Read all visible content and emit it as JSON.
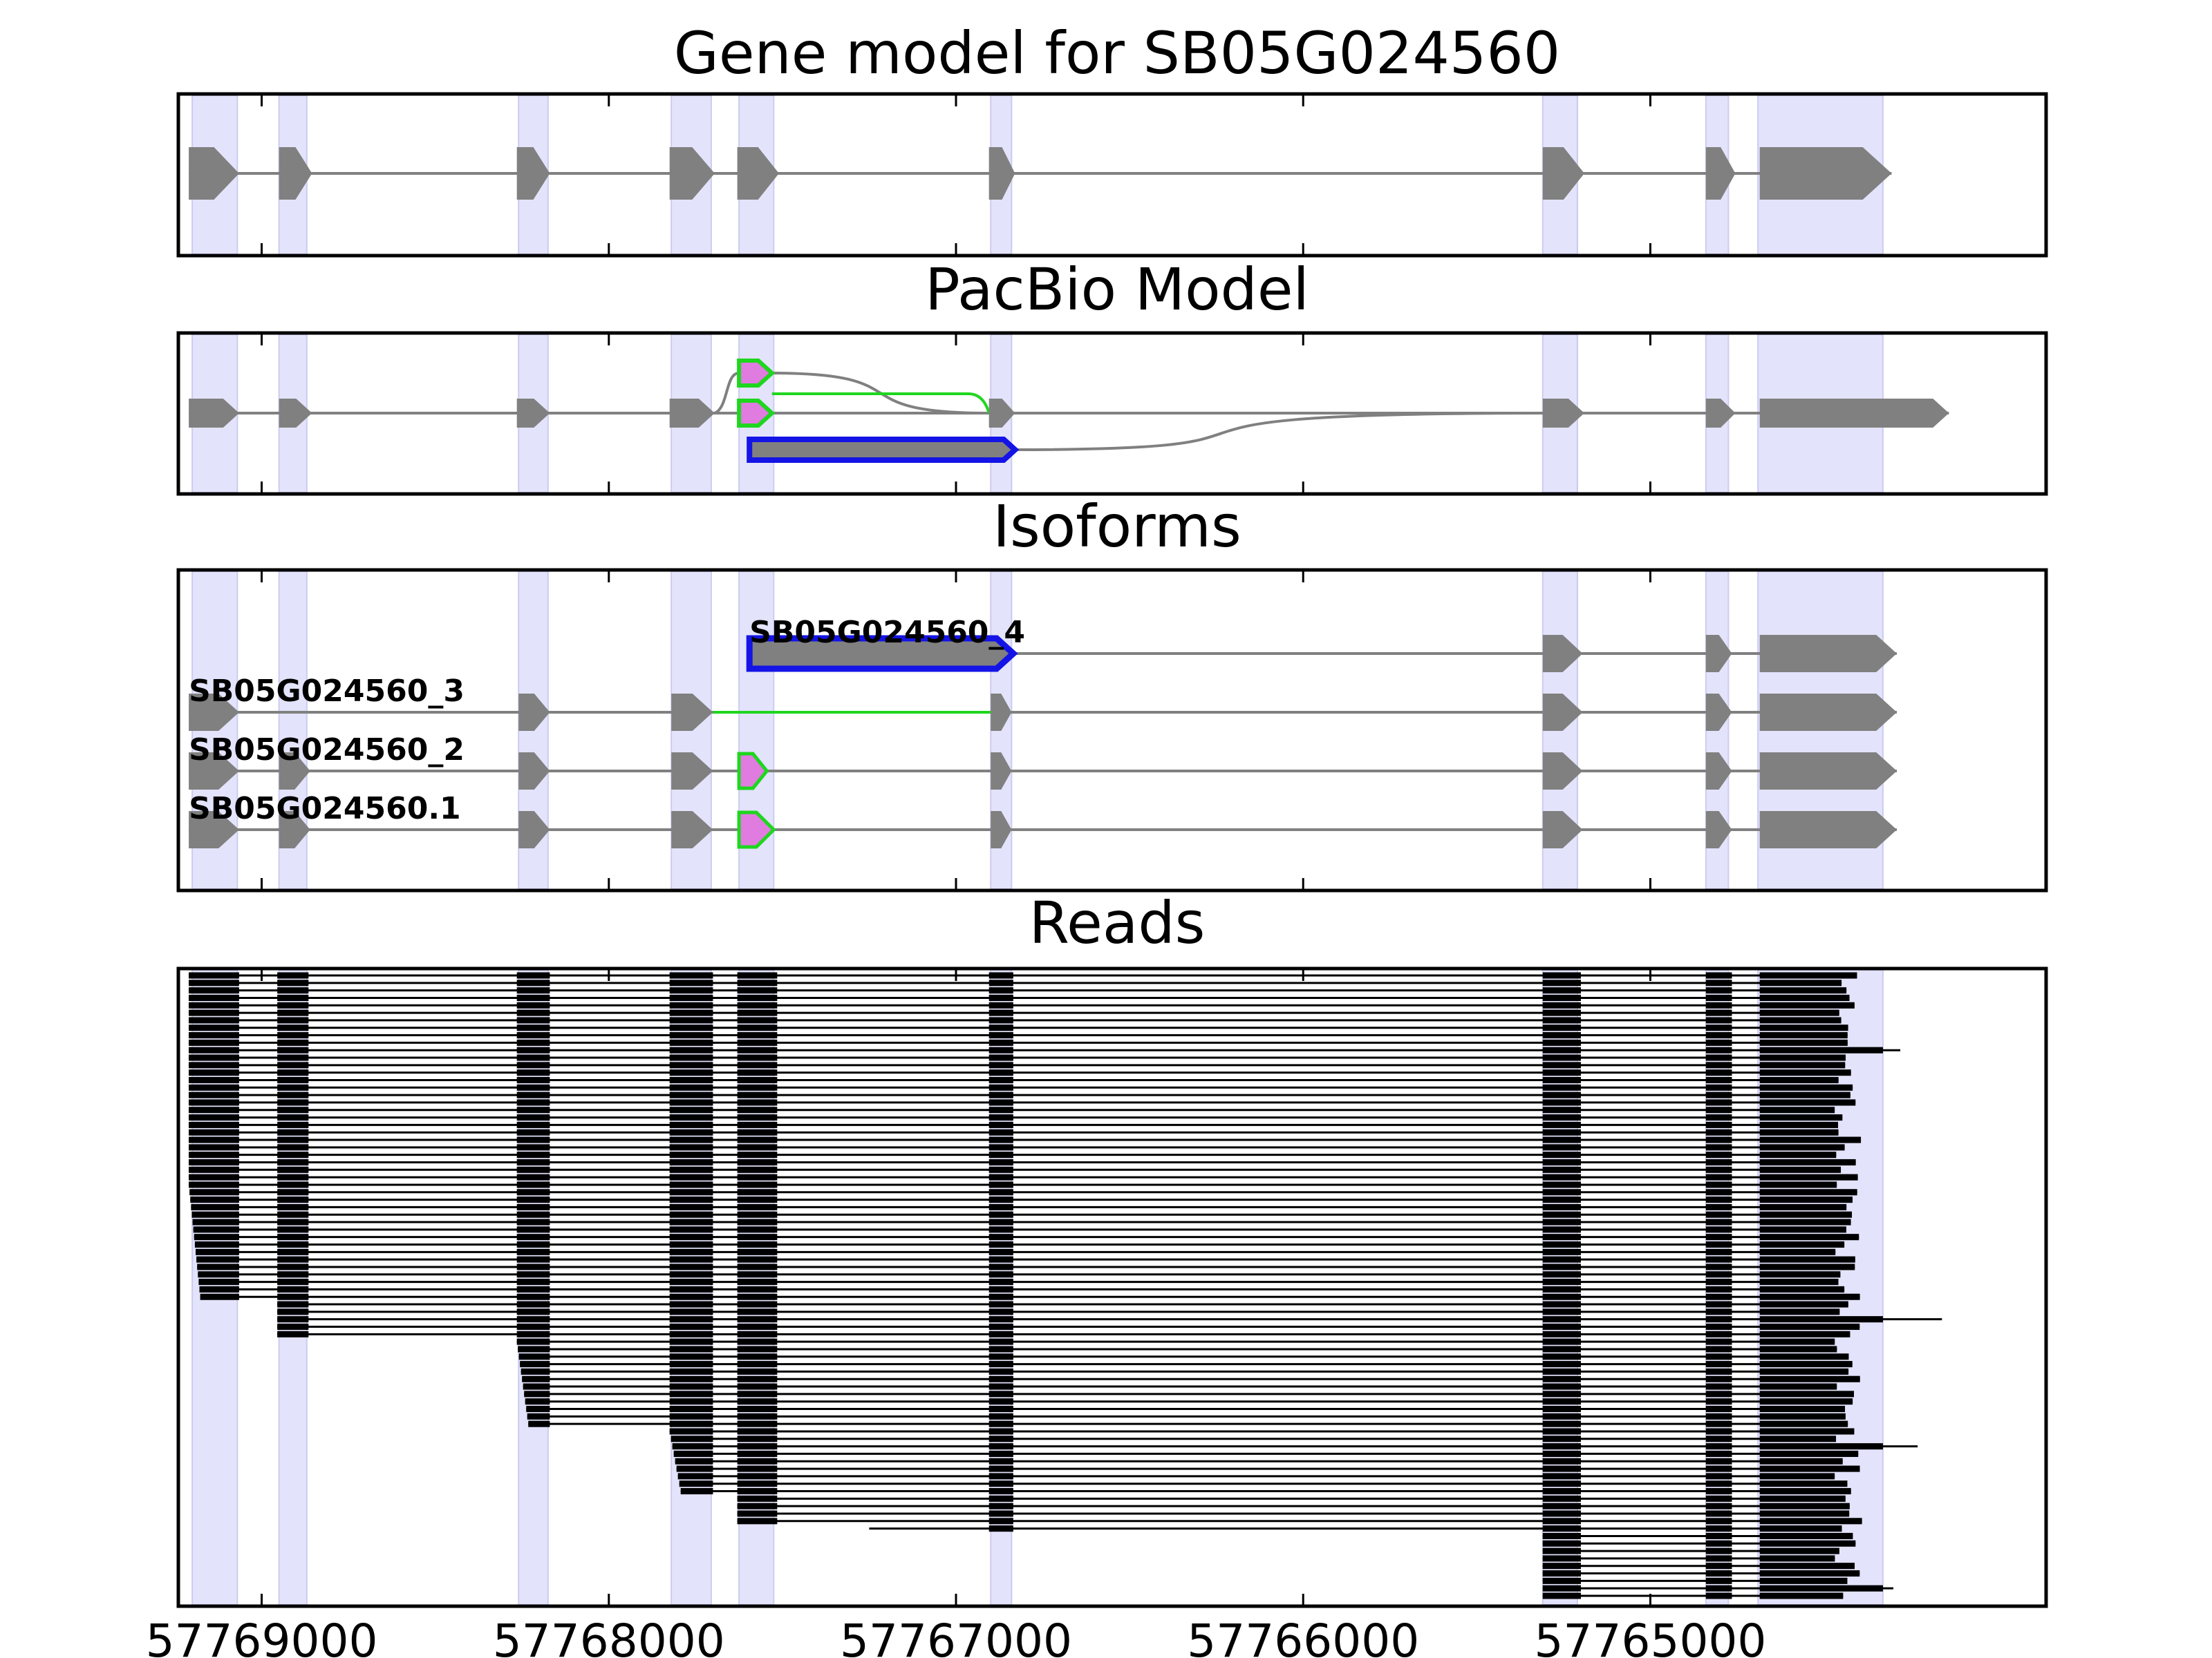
{
  "chart_data": {
    "type": "gene-model-panels",
    "x_axis": {
      "ticks": [
        57769000,
        57768000,
        57767000,
        57766000,
        57765000
      ],
      "tick_labels": [
        "57769000",
        "57768000",
        "57767000",
        "57766000",
        "57765000"
      ],
      "reversed": true,
      "xlim": [
        57769240,
        57763860
      ]
    },
    "exon_highlights": [
      [
        57769200,
        57769070
      ],
      [
        57768950,
        57768870
      ],
      [
        57768260,
        57768175
      ],
      [
        57767820,
        57767705
      ],
      [
        57767625,
        57767525
      ],
      [
        57766900,
        57766840
      ],
      [
        57765310,
        57765210
      ],
      [
        57764840,
        57764775
      ],
      [
        57764690,
        57764330
      ]
    ],
    "panels": {
      "gene_model": {
        "title": "Gene model for SB05G024560",
        "exons": [
          [
            57769210,
            57769065
          ],
          [
            57768950,
            57768855
          ],
          [
            57768265,
            57768170
          ],
          [
            57767825,
            57767695
          ],
          [
            57767630,
            57767510
          ],
          [
            57766905,
            57766830
          ],
          [
            57765310,
            57765190
          ],
          [
            57764840,
            57764755
          ],
          [
            57764685,
            57764305
          ]
        ]
      },
      "pacbio_model": {
        "title": "PacBio Model",
        "main_exons": [
          [
            57769210,
            57769065
          ],
          [
            57768950,
            57768855
          ],
          [
            57768265,
            57768170
          ],
          [
            57767825,
            57767695
          ],
          [
            57766905,
            57766830
          ],
          [
            57765310,
            57765190
          ],
          [
            57764840,
            57764755
          ],
          [
            57764685,
            57764140
          ]
        ],
        "alt_exon_top": [
          57767625,
          57767530
        ],
        "alt_exon_mid": [
          57767625,
          57767530
        ],
        "retained_intron": [
          57767595,
          57766830
        ]
      },
      "isoforms": {
        "title": "Isoforms",
        "tracks": [
          {
            "label": "SB05G024560_4",
            "retained": [
              57767595,
              57766835
            ],
            "exons": [
              [
                57765310,
                57765195
              ],
              [
                57764840,
                57764765
              ],
              [
                57764685,
                57764290
              ]
            ]
          },
          {
            "label": "SB05G024560_3",
            "exons": [
              [
                57769210,
                57769065
              ],
              [
                57768260,
                57768170
              ],
              [
                57767820,
                57767700
              ],
              [
                57766900,
                57766840
              ],
              [
                57765310,
                57765195
              ],
              [
                57764840,
                57764765
              ],
              [
                57764685,
                57764290
              ]
            ],
            "green_intron": [
              57767700,
              57766900
            ]
          },
          {
            "label": "SB05G024560_2",
            "exons": [
              [
                57769210,
                57769065
              ],
              [
                57768950,
                57768860
              ],
              [
                57768260,
                57768170
              ],
              [
                57767820,
                57767700
              ],
              [
                57766900,
                57766840
              ],
              [
                57765310,
                57765195
              ],
              [
                57764840,
                57764765
              ],
              [
                57764685,
                57764290
              ]
            ],
            "alt_exon": [
              57767625,
              57767545
            ]
          },
          {
            "label": "SB05G024560.1",
            "exons": [
              [
                57769210,
                57769065
              ],
              [
                57768950,
                57768860
              ],
              [
                57768260,
                57768170
              ],
              [
                57767820,
                57767700
              ],
              [
                57766900,
                57766840
              ],
              [
                57765310,
                57765195
              ],
              [
                57764840,
                57764765
              ],
              [
                57764685,
                57764290
              ]
            ],
            "alt_exon": [
              57767625,
              57767525
            ]
          }
        ]
      },
      "reads": {
        "title": "Reads",
        "read_count": 84,
        "exon_blocks": [
          [
            57768955,
            57768865
          ],
          [
            57768265,
            57768170
          ],
          [
            57767825,
            57767700
          ],
          [
            57767630,
            57767515
          ],
          [
            57766905,
            57766835
          ],
          [
            57765310,
            57765200
          ],
          [
            57764840,
            57764765
          ],
          [
            57764685,
            57764330
          ]
        ]
      }
    }
  }
}
